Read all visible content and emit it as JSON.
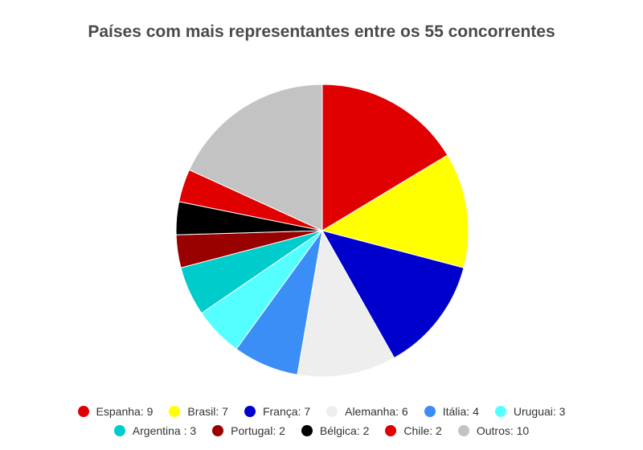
{
  "chart_data": {
    "type": "pie",
    "title": "Países com mais representantes entre os 55 concorrentes",
    "slices": [
      {
        "label": "Espanha",
        "value": 9,
        "legend": "Espanha: 9",
        "color": "#e00000"
      },
      {
        "label": "Brasil",
        "value": 7,
        "legend": "Brasil: 7",
        "color": "#ffff00"
      },
      {
        "label": "França",
        "value": 7,
        "legend": "França: 7",
        "color": "#0000cc"
      },
      {
        "label": "Alemanha",
        "value": 6,
        "legend": "Alemanha: 6",
        "color": "#eeeeee"
      },
      {
        "label": "Itália",
        "value": 4,
        "legend": "Itália: 4",
        "color": "#3a8ef5"
      },
      {
        "label": "Uruguai",
        "value": 3,
        "legend": "Uruguai: 3",
        "color": "#55ffff"
      },
      {
        "label": "Argentina",
        "value": 3,
        "legend": "Argentina : 3",
        "color": "#00cccc"
      },
      {
        "label": "Portugal",
        "value": 2,
        "legend": "Portugal: 2",
        "color": "#990000"
      },
      {
        "label": "Bélgica",
        "value": 2,
        "legend": "Bélgica: 2",
        "color": "#000000"
      },
      {
        "label": "Chile",
        "value": 2,
        "legend": "Chile: 2",
        "color": "#e00000"
      },
      {
        "label": "Outros",
        "value": 10,
        "legend": "Outros: 10",
        "color": "#c3c3c3"
      }
    ],
    "legend_position": "bottom"
  }
}
